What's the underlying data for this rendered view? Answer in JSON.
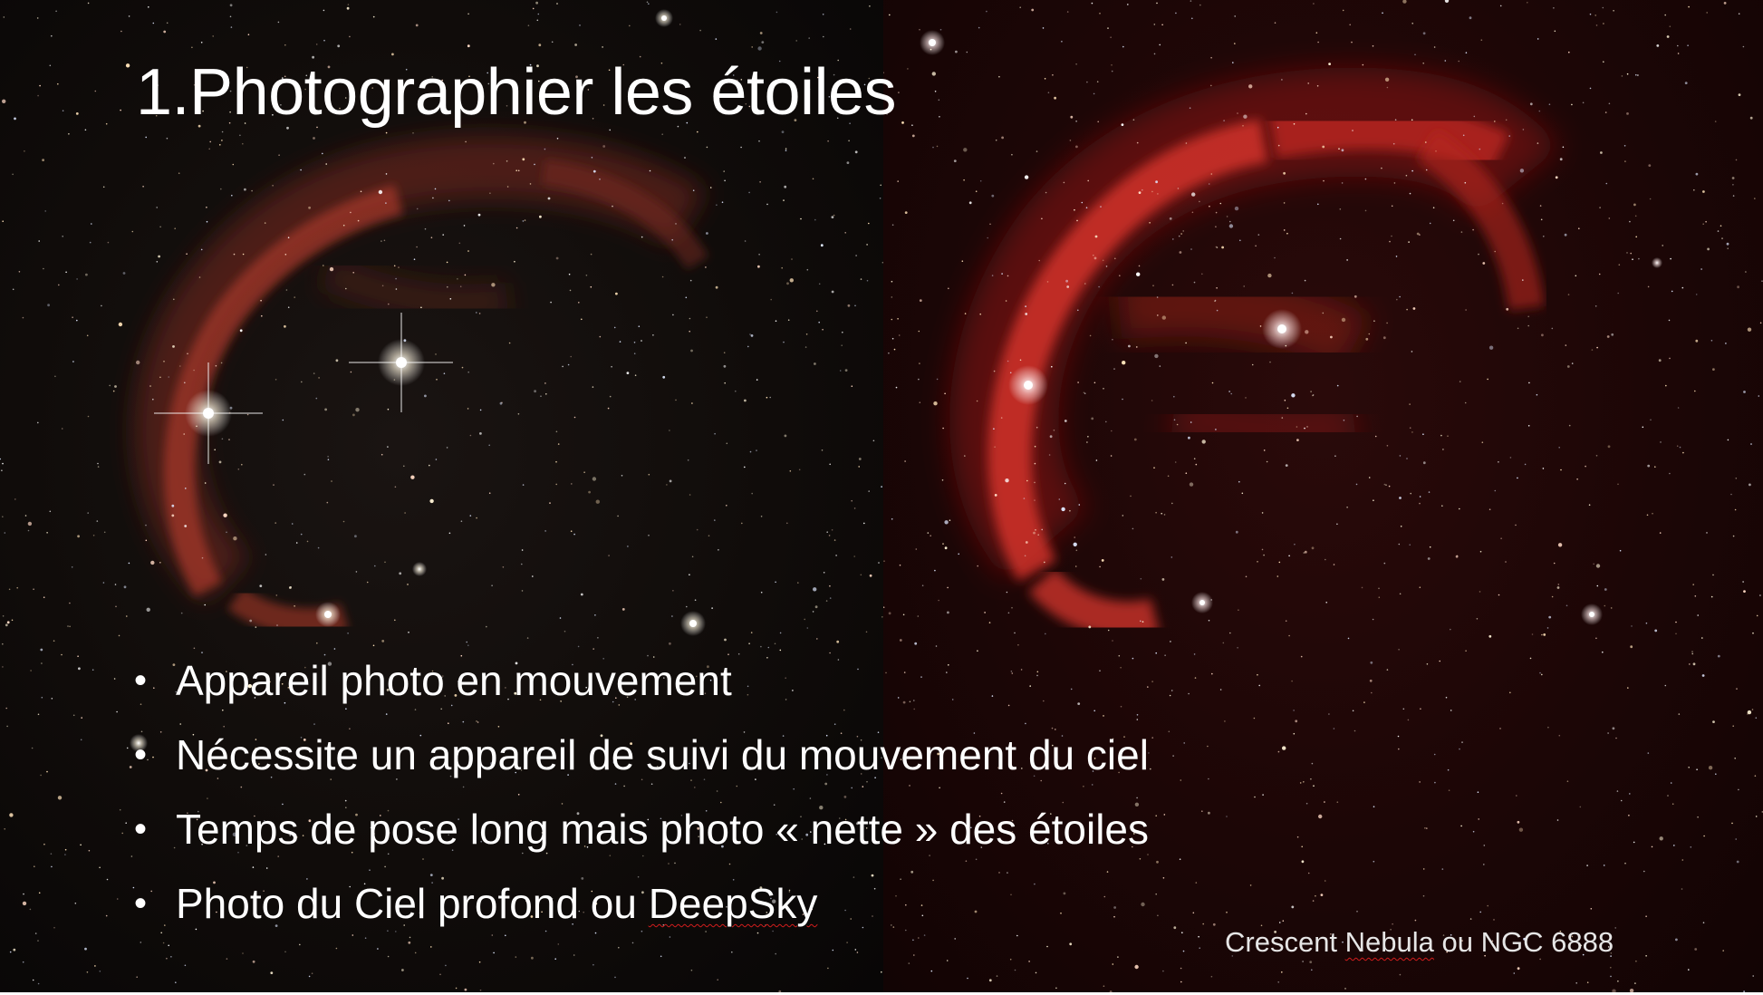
{
  "slide": {
    "title": "1.Photographier les étoiles",
    "bullet_glyph": "•",
    "bullets": [
      {
        "text": "Appareil photo en mouvement"
      },
      {
        "text": "Nécessite un appareil de suivi du mouvement du ciel"
      },
      {
        "text": "Temps de pose long mais photo « nette » des étoiles"
      },
      {
        "text_before": "Photo du Ciel profond ou ",
        "text_flagged": "DeepSky",
        "spellcheck_flag": true
      }
    ],
    "caption": {
      "text_before": "Crescent ",
      "text_flagged": "Nebula",
      "text_after": " ou NGC 6888",
      "spellcheck_flag": true
    }
  },
  "images": {
    "left": {
      "icon": "crescent-nebula-photo-natural-color"
    },
    "right": {
      "icon": "crescent-nebula-photo-h-alpha"
    }
  },
  "colors": {
    "nebula_left": "#9a3324",
    "nebula_right": "#c2231c",
    "text": "#ffffff",
    "caption": "#e6e6e6",
    "spellcheck_underline": "#d21d1d"
  }
}
